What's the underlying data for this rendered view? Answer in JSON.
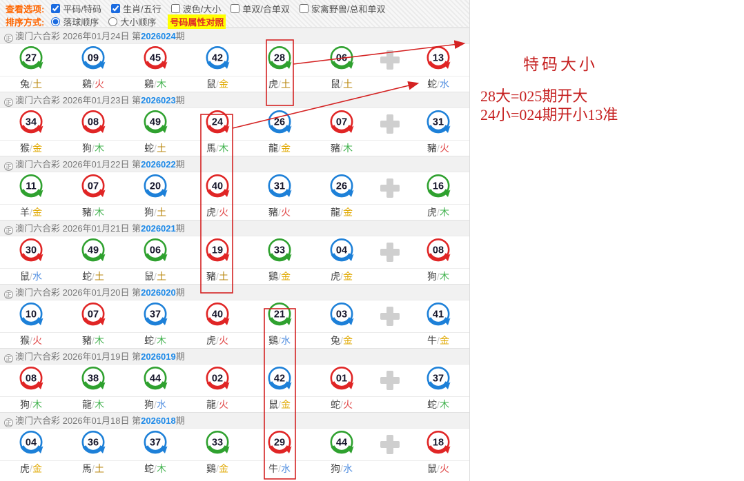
{
  "options": {
    "view_label": "查看选项:",
    "checkboxes": [
      {
        "label": "平码/特码",
        "checked": true
      },
      {
        "label": "生肖/五行",
        "checked": true
      },
      {
        "label": "波色/大小",
        "checked": false
      },
      {
        "label": "单双/合单双",
        "checked": false
      },
      {
        "label": "家禽野兽/总和单双",
        "checked": false
      }
    ],
    "sort_label": "排序方式:",
    "radios": [
      {
        "label": "落球顺序",
        "checked": true
      },
      {
        "label": "大小顺序",
        "checked": false
      }
    ],
    "compare_link": "号码属性对照"
  },
  "list": {
    "site_icon": "正",
    "site_name": "澳门六合彩",
    "period_prefix": "第",
    "period_suffix": "期",
    "periods": [
      {
        "date": "2026年01月24日",
        "no": "2026024",
        "balls": [
          {
            "n": "27",
            "c": "green",
            "z": "兔",
            "e": "土"
          },
          {
            "n": "09",
            "c": "blue",
            "z": "鷄",
            "e": "火"
          },
          {
            "n": "45",
            "c": "red",
            "z": "鷄",
            "e": "木"
          },
          {
            "n": "42",
            "c": "blue",
            "z": "鼠",
            "e": "金"
          },
          {
            "n": "28",
            "c": "green",
            "z": "虎",
            "e": "土"
          },
          {
            "n": "06",
            "c": "green",
            "z": "鼠",
            "e": "土"
          }
        ],
        "special": {
          "n": "13",
          "c": "red",
          "z": "蛇",
          "e": "水"
        }
      },
      {
        "date": "2026年01月23日",
        "no": "2026023",
        "balls": [
          {
            "n": "34",
            "c": "red",
            "z": "猴",
            "e": "金"
          },
          {
            "n": "08",
            "c": "red",
            "z": "狗",
            "e": "木"
          },
          {
            "n": "49",
            "c": "green",
            "z": "蛇",
            "e": "土"
          },
          {
            "n": "24",
            "c": "red",
            "z": "馬",
            "e": "木"
          },
          {
            "n": "26",
            "c": "blue",
            "z": "龍",
            "e": "金"
          },
          {
            "n": "07",
            "c": "red",
            "z": "豬",
            "e": "木"
          }
        ],
        "special": {
          "n": "31",
          "c": "blue",
          "z": "豬",
          "e": "火"
        }
      },
      {
        "date": "2026年01月22日",
        "no": "2026022",
        "balls": [
          {
            "n": "11",
            "c": "green",
            "z": "羊",
            "e": "金"
          },
          {
            "n": "07",
            "c": "red",
            "z": "豬",
            "e": "木"
          },
          {
            "n": "20",
            "c": "blue",
            "z": "狗",
            "e": "土"
          },
          {
            "n": "40",
            "c": "red",
            "z": "虎",
            "e": "火"
          },
          {
            "n": "31",
            "c": "blue",
            "z": "豬",
            "e": "火"
          },
          {
            "n": "26",
            "c": "blue",
            "z": "龍",
            "e": "金"
          }
        ],
        "special": {
          "n": "16",
          "c": "green",
          "z": "虎",
          "e": "木"
        }
      },
      {
        "date": "2026年01月21日",
        "no": "2026021",
        "balls": [
          {
            "n": "30",
            "c": "red",
            "z": "鼠",
            "e": "水"
          },
          {
            "n": "49",
            "c": "green",
            "z": "蛇",
            "e": "土"
          },
          {
            "n": "06",
            "c": "green",
            "z": "鼠",
            "e": "土"
          },
          {
            "n": "19",
            "c": "red",
            "z": "豬",
            "e": "土"
          },
          {
            "n": "33",
            "c": "green",
            "z": "鷄",
            "e": "金"
          },
          {
            "n": "04",
            "c": "blue",
            "z": "虎",
            "e": "金"
          }
        ],
        "special": {
          "n": "08",
          "c": "red",
          "z": "狗",
          "e": "木"
        }
      },
      {
        "date": "2026年01月20日",
        "no": "2026020",
        "balls": [
          {
            "n": "10",
            "c": "blue",
            "z": "猴",
            "e": "火"
          },
          {
            "n": "07",
            "c": "red",
            "z": "豬",
            "e": "木"
          },
          {
            "n": "37",
            "c": "blue",
            "z": "蛇",
            "e": "木"
          },
          {
            "n": "40",
            "c": "red",
            "z": "虎",
            "e": "火"
          },
          {
            "n": "21",
            "c": "green",
            "z": "鷄",
            "e": "水"
          },
          {
            "n": "03",
            "c": "blue",
            "z": "兔",
            "e": "金"
          }
        ],
        "special": {
          "n": "41",
          "c": "blue",
          "z": "牛",
          "e": "金"
        }
      },
      {
        "date": "2026年01月19日",
        "no": "2026019",
        "balls": [
          {
            "n": "08",
            "c": "red",
            "z": "狗",
            "e": "木"
          },
          {
            "n": "38",
            "c": "green",
            "z": "龍",
            "e": "木"
          },
          {
            "n": "44",
            "c": "green",
            "z": "狗",
            "e": "水"
          },
          {
            "n": "02",
            "c": "red",
            "z": "龍",
            "e": "火"
          },
          {
            "n": "42",
            "c": "blue",
            "z": "鼠",
            "e": "金"
          },
          {
            "n": "01",
            "c": "red",
            "z": "蛇",
            "e": "火"
          }
        ],
        "special": {
          "n": "37",
          "c": "blue",
          "z": "蛇",
          "e": "木"
        }
      },
      {
        "date": "2026年01月18日",
        "no": "2026018",
        "balls": [
          {
            "n": "04",
            "c": "blue",
            "z": "虎",
            "e": "金"
          },
          {
            "n": "36",
            "c": "blue",
            "z": "馬",
            "e": "土"
          },
          {
            "n": "37",
            "c": "blue",
            "z": "蛇",
            "e": "木"
          },
          {
            "n": "33",
            "c": "green",
            "z": "鷄",
            "e": "金"
          },
          {
            "n": "29",
            "c": "red",
            "z": "牛",
            "e": "水"
          },
          {
            "n": "44",
            "c": "green",
            "z": "狗",
            "e": "水"
          }
        ],
        "special": {
          "n": "18",
          "c": "red",
          "z": "鼠",
          "e": "火"
        }
      }
    ]
  },
  "annotation": {
    "title": "特码大小",
    "lines": [
      "28大=025期开大",
      "24小=024期开小13准"
    ],
    "marked_balls": [
      "28 (期2026024)",
      "24 / 40 / 19 (期2026023-2026021)",
      "21 / 42 / 29 (期2026020-2026018)"
    ]
  },
  "colors": {
    "balls": {
      "red": "#e02525",
      "blue": "#1d80d8",
      "green": "#2fa12f"
    },
    "elements": {
      "金": "#e0a800",
      "木": "#3db04a",
      "水": "#528fe0",
      "火": "#e04848",
      "土": "#b8860b"
    },
    "mark_red": "#d42222",
    "annotation_red": "#c51f1f",
    "period_no_blue": "#1e8ae8",
    "highlight_yellow": "#ffff00",
    "option_label_orange": "#ff6600"
  }
}
